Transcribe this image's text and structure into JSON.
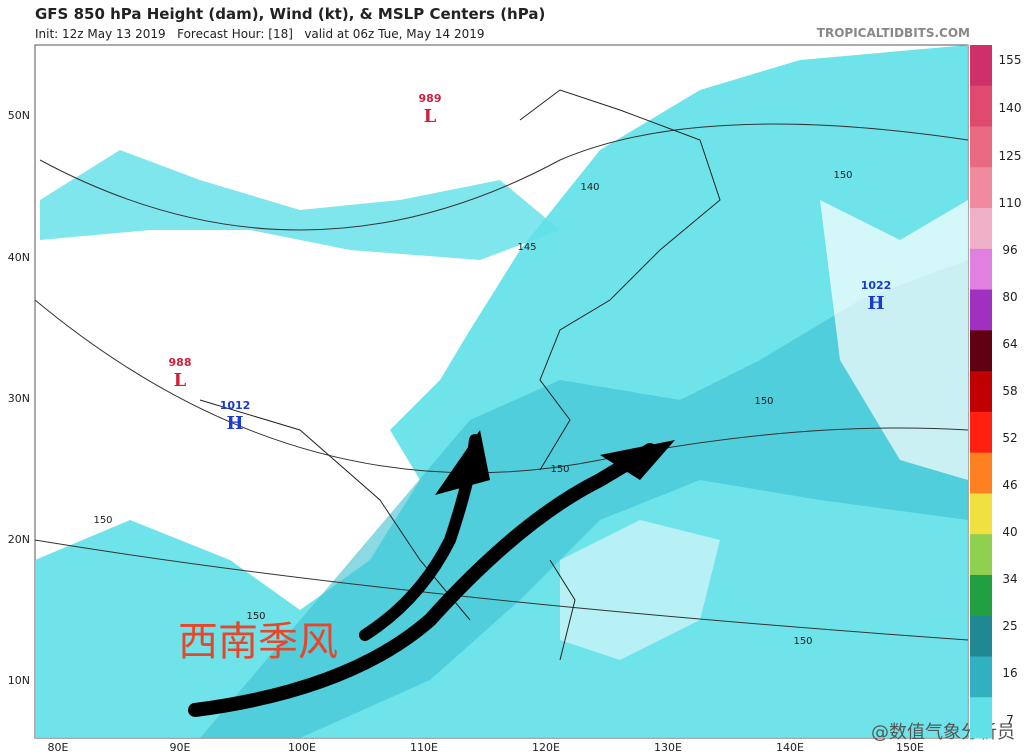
{
  "header": {
    "title": "GFS 850 hPa Height (dam), Wind (kt), & MSLP Centers (hPa)",
    "subtitle": "Init: 12z May 13 2019   Forecast Hour: [18]   valid at 06z Tue, May 14 2019",
    "source": "TROPICALTIDBITS.COM"
  },
  "latitude_labels": [
    "50N",
    "40N",
    "30N",
    "20N",
    "10N"
  ],
  "longitude_labels": [
    "80E",
    "90E",
    "100E",
    "110E",
    "120E",
    "130E",
    "140E",
    "150E"
  ],
  "colorbar_labels": [
    "155",
    "140",
    "125",
    "110",
    "96",
    "80",
    "64",
    "58",
    "52",
    "46",
    "40",
    "34",
    "25",
    "16",
    "7"
  ],
  "pressure_centers": [
    {
      "value": "989",
      "label": "L"
    },
    {
      "value": "988",
      "label": "L"
    },
    {
      "value": "1012",
      "label": "H"
    },
    {
      "value": "1022",
      "label": "H"
    }
  ],
  "contour_labels": [
    "140",
    "145",
    "150",
    "150",
    "150",
    "150",
    "150",
    "150"
  ],
  "annotation": "西南季风",
  "watermark": "@数值气象分析员"
}
